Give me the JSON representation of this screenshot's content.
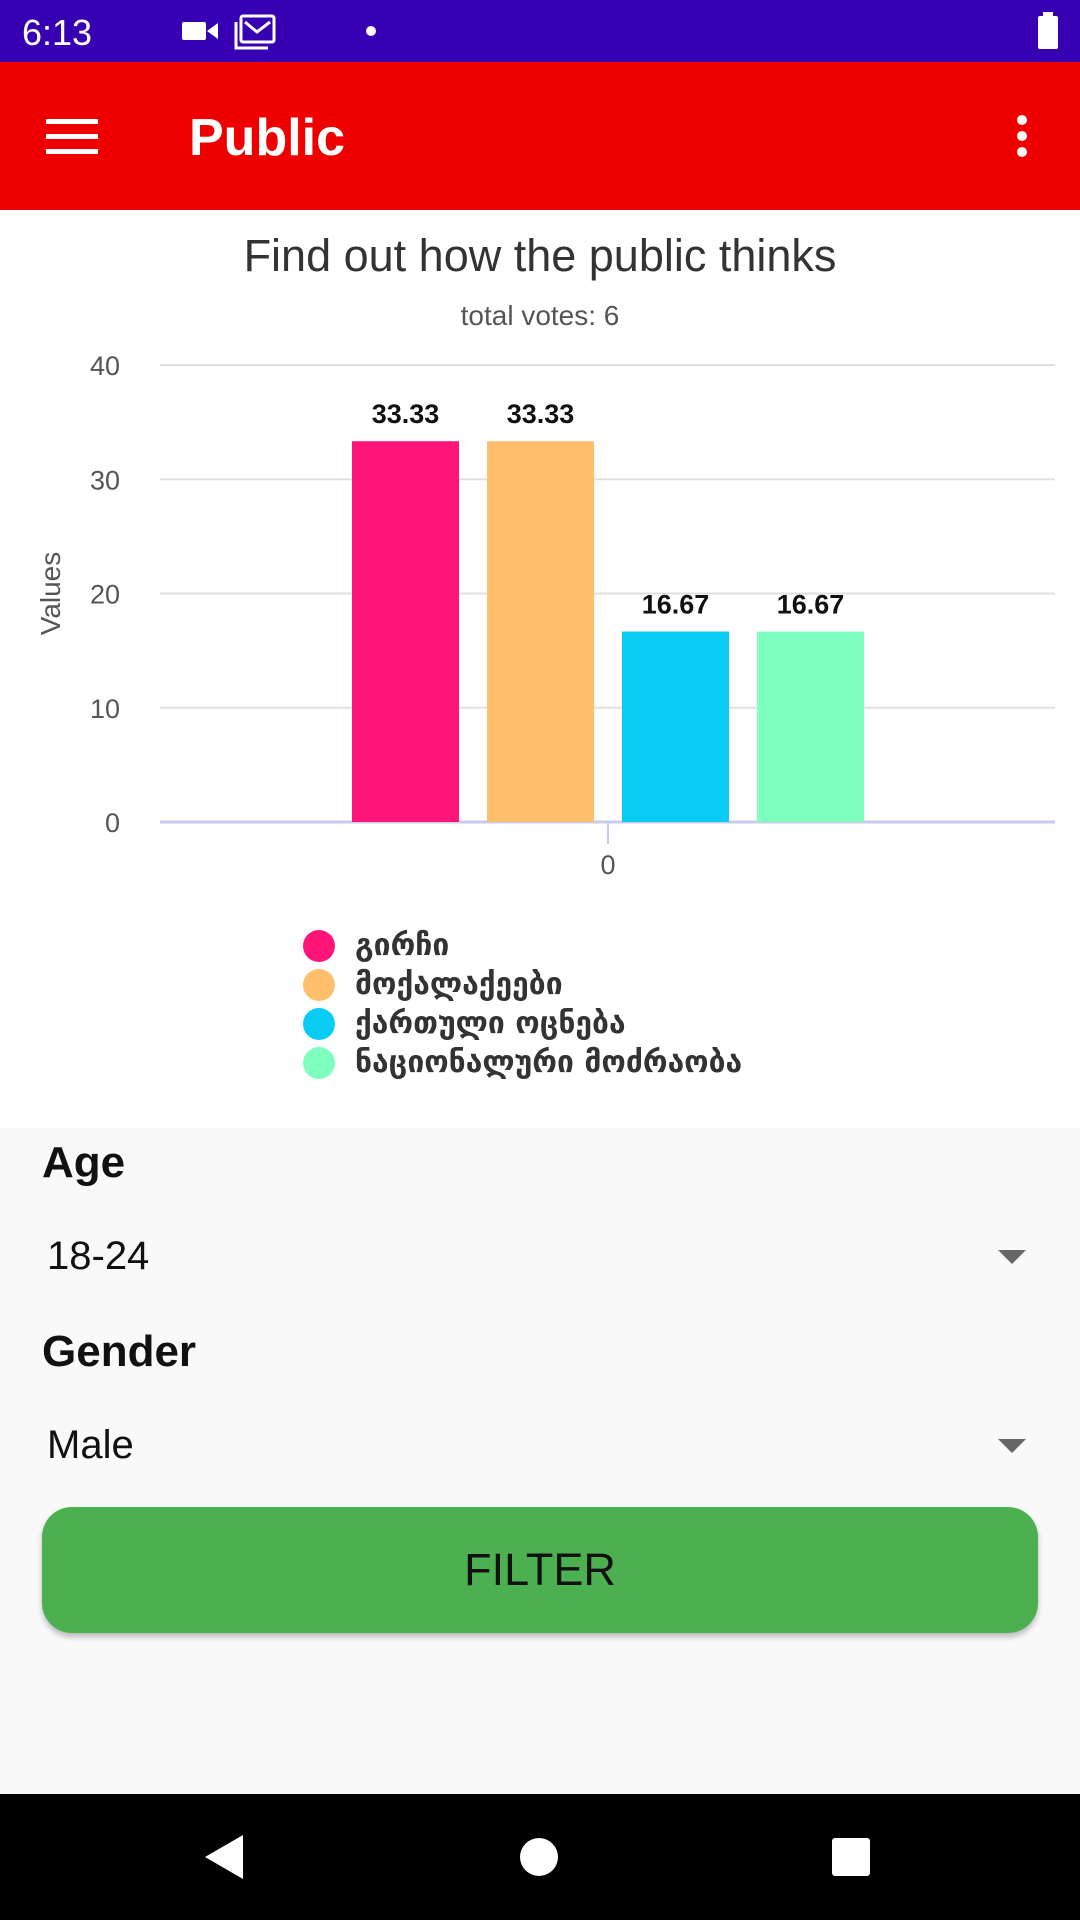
{
  "status_bar": {
    "time": "6:13",
    "icons": [
      "video-icon",
      "mail-icon",
      "notification-dot",
      "battery-icon"
    ]
  },
  "app_bar": {
    "title": "Public",
    "menu_icon": "hamburger-icon",
    "overflow_icon": "more-vert-icon",
    "background": "#ee0000"
  },
  "chart": {
    "title": "Find out how the public thinks",
    "subtitle": "total votes: 6"
  },
  "chart_data": {
    "type": "bar",
    "categories": [
      "0"
    ],
    "ylabel": "Values",
    "xlabel": "",
    "ylim": [
      0,
      40
    ],
    "yticks": [
      0,
      10,
      20,
      30,
      40
    ],
    "grid": true,
    "legend_position": "bottom",
    "series": [
      {
        "name": "გირჩი",
        "values": [
          33.33
        ],
        "color": "#ff1478",
        "value_label": "33.33"
      },
      {
        "name": "მოქალაქეები",
        "values": [
          33.33
        ],
        "color": "#ffbe6b",
        "value_label": "33.33"
      },
      {
        "name": "ქართული ოცნება",
        "values": [
          16.67
        ],
        "color": "#08ccf4",
        "value_label": "16.67"
      },
      {
        "name": "ნაციონალური მოძრაობა",
        "values": [
          16.67
        ],
        "color": "#7fffbf",
        "value_label": "16.67"
      }
    ]
  },
  "filters": {
    "age": {
      "label": "Age",
      "value": "18-24"
    },
    "gender": {
      "label": "Gender",
      "value": "Male"
    },
    "button_label": "FILTER",
    "button_color": "#4caf50"
  },
  "nav_bar": {
    "icons": [
      "back-icon",
      "home-icon",
      "recents-icon"
    ]
  }
}
